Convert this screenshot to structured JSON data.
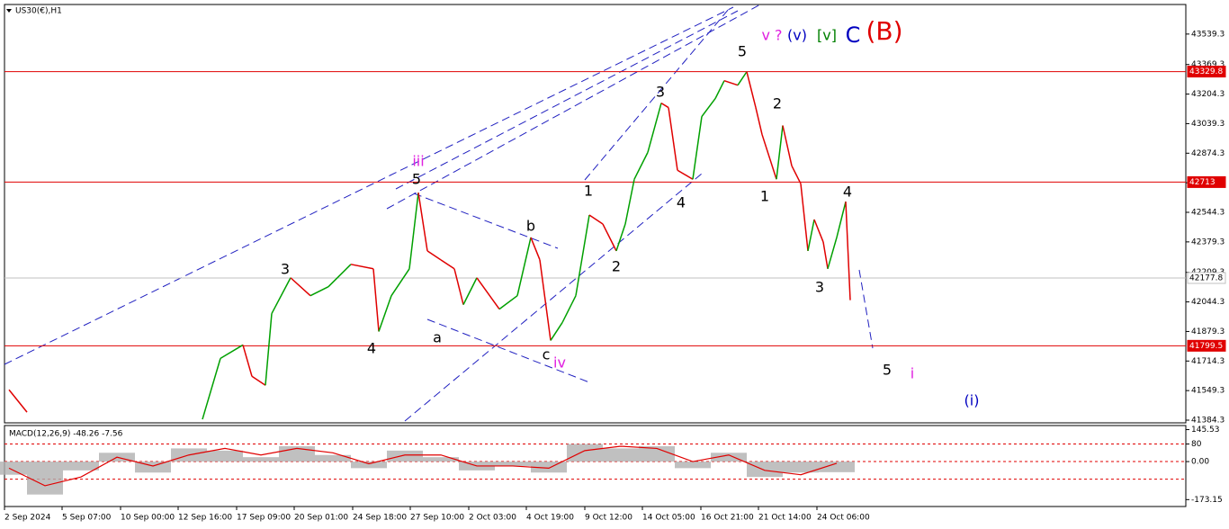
{
  "chart_data": [
    {
      "type": "line",
      "title": "US30(€),H1",
      "x": [
        5,
        25,
        120,
        220,
        240,
        265,
        275,
        290,
        297,
        318,
        340,
        360,
        385,
        410,
        416,
        430,
        450,
        460,
        470,
        485,
        500,
        510,
        525,
        550,
        570,
        585,
        595,
        607,
        620,
        635,
        650,
        665,
        680,
        690,
        700,
        715,
        730,
        738,
        748,
        765,
        775,
        790,
        800,
        815,
        825,
        835,
        842,
        858,
        865,
        875,
        885,
        893,
        900,
        910,
        915,
        925,
        935,
        940
      ],
      "series": [
        {
          "name": "US30",
          "values": [
            41554,
            41429,
            null,
            41389,
            41729,
            41804,
            41629,
            41579,
            41979,
            42179,
            42079,
            42129,
            42254,
            42229,
            41879,
            42079,
            42229,
            42654,
            42329,
            42279,
            42229,
            42029,
            42179,
            42004,
            42079,
            42404,
            42279,
            41829,
            41929,
            42079,
            42529,
            42479,
            42329,
            42479,
            42729,
            42879,
            43154,
            43129,
            42779,
            42729,
            43079,
            43179,
            43279,
            43254,
            43329,
            43129,
            42979,
            42729,
            43029,
            42804,
            42704,
            42329,
            42504,
            42379,
            42229,
            42404,
            42604,
            42054
          ],
          "up_color": "#00a000",
          "down_color": "#e00000"
        }
      ],
      "xlim": [
        0,
        1313
      ],
      "xticks": [
        {
          "value": 0,
          "label": "2 Sep 2024"
        },
        {
          "value": 64,
          "label": "5 Sep 07:00"
        },
        {
          "value": 129,
          "label": "10 Sep 00:00"
        },
        {
          "value": 193,
          "label": "12 Sep 16:00"
        },
        {
          "value": 258,
          "label": "17 Sep 09:00"
        },
        {
          "value": 322,
          "label": "20 Sep 01:00"
        },
        {
          "value": 387,
          "label": "24 Sep 18:00"
        },
        {
          "value": 451,
          "label": "27 Sep 10:00"
        },
        {
          "value": 516,
          "label": "2 Oct 03:00"
        },
        {
          "value": 580,
          "label": "4 Oct 19:00"
        },
        {
          "value": 645,
          "label": "9 Oct 12:00"
        },
        {
          "value": 709,
          "label": "14 Oct 05:00"
        },
        {
          "value": 774,
          "label": "16 Oct 21:00"
        },
        {
          "value": 838,
          "label": "21 Oct 14:00"
        },
        {
          "value": 903,
          "label": "24 Oct 06:00"
        }
      ],
      "ylim": [
        41369.3,
        43704.3
      ],
      "yticks": [
        43539.3,
        43369.3,
        43204.3,
        43039.3,
        42874.3,
        42709.3,
        42544.3,
        42379.3,
        42209.3,
        42044.3,
        41879.3,
        41714.3,
        41549.3,
        41384.3
      ],
      "hlines": [
        {
          "value": 43329.8,
          "color": "#e00000"
        },
        {
          "value": 42713.0,
          "color": "#e00000"
        },
        {
          "value": 41799.5,
          "color": "#e00000"
        },
        {
          "value": 42177.8,
          "color": "#c0c0c0"
        }
      ],
      "annotations": [
        {
          "text": "iii",
          "color": "#e020e0"
        },
        {
          "text": "5",
          "color": "#000"
        },
        {
          "text": "3",
          "color": "#000"
        },
        {
          "text": "4",
          "color": "#000"
        },
        {
          "text": "a",
          "color": "#000"
        },
        {
          "text": "b",
          "color": "#000"
        },
        {
          "text": "c",
          "color": "#000"
        },
        {
          "text": "iv",
          "color": "#e020e0"
        },
        {
          "text": "1",
          "color": "#000"
        },
        {
          "text": "2",
          "color": "#000"
        },
        {
          "text": "3",
          "color": "#000"
        },
        {
          "text": "4",
          "color": "#000"
        },
        {
          "text": "5",
          "color": "#000"
        },
        {
          "text": "2",
          "color": "#000"
        },
        {
          "text": "1",
          "color": "#000"
        },
        {
          "text": "4",
          "color": "#000"
        },
        {
          "text": "3",
          "color": "#000"
        },
        {
          "text": "5",
          "color": "#000"
        },
        {
          "text": "i",
          "color": "#e020e0"
        },
        {
          "text": "(i)",
          "color": "#0000c0"
        },
        {
          "text": "v ?",
          "color": "#e020e0"
        },
        {
          "text": "(v)",
          "color": "#0000c0"
        },
        {
          "text": "[v]",
          "color": "#008000"
        },
        {
          "text": "C",
          "color": "#0000c0"
        },
        {
          "text": "(B)",
          "color": "#e00000"
        }
      ]
    },
    {
      "type": "macd",
      "title": "MACD(12,26,9) -48.26 -7.56",
      "x": [
        5,
        45,
        85,
        125,
        165,
        205,
        245,
        285,
        325,
        365,
        405,
        445,
        485,
        525,
        565,
        605,
        645,
        685,
        725,
        765,
        805,
        845,
        885,
        925
      ],
      "series": [
        {
          "name": "MACD",
          "color": "#b0b0b0",
          "values": [
            -60,
            -150,
            -40,
            40,
            -50,
            60,
            50,
            20,
            70,
            30,
            -30,
            50,
            20,
            -40,
            -20,
            -50,
            80,
            60,
            70,
            -30,
            40,
            -70,
            -50,
            -48.26
          ]
        },
        {
          "name": "Signal",
          "color": "#e00000",
          "values": [
            -30,
            -110,
            -70,
            20,
            -20,
            30,
            60,
            30,
            60,
            40,
            -10,
            30,
            30,
            -20,
            -20,
            -30,
            50,
            70,
            60,
            0,
            30,
            -40,
            -60,
            -7.56
          ]
        }
      ],
      "xlim": [
        0,
        1313
      ],
      "ylim": [
        -180,
        160
      ],
      "yticks": [
        145.53,
        80,
        {
          "value": 0,
          "label": "0.00"
        },
        -173.15
      ],
      "levels": [
        80,
        0,
        -80
      ]
    }
  ]
}
